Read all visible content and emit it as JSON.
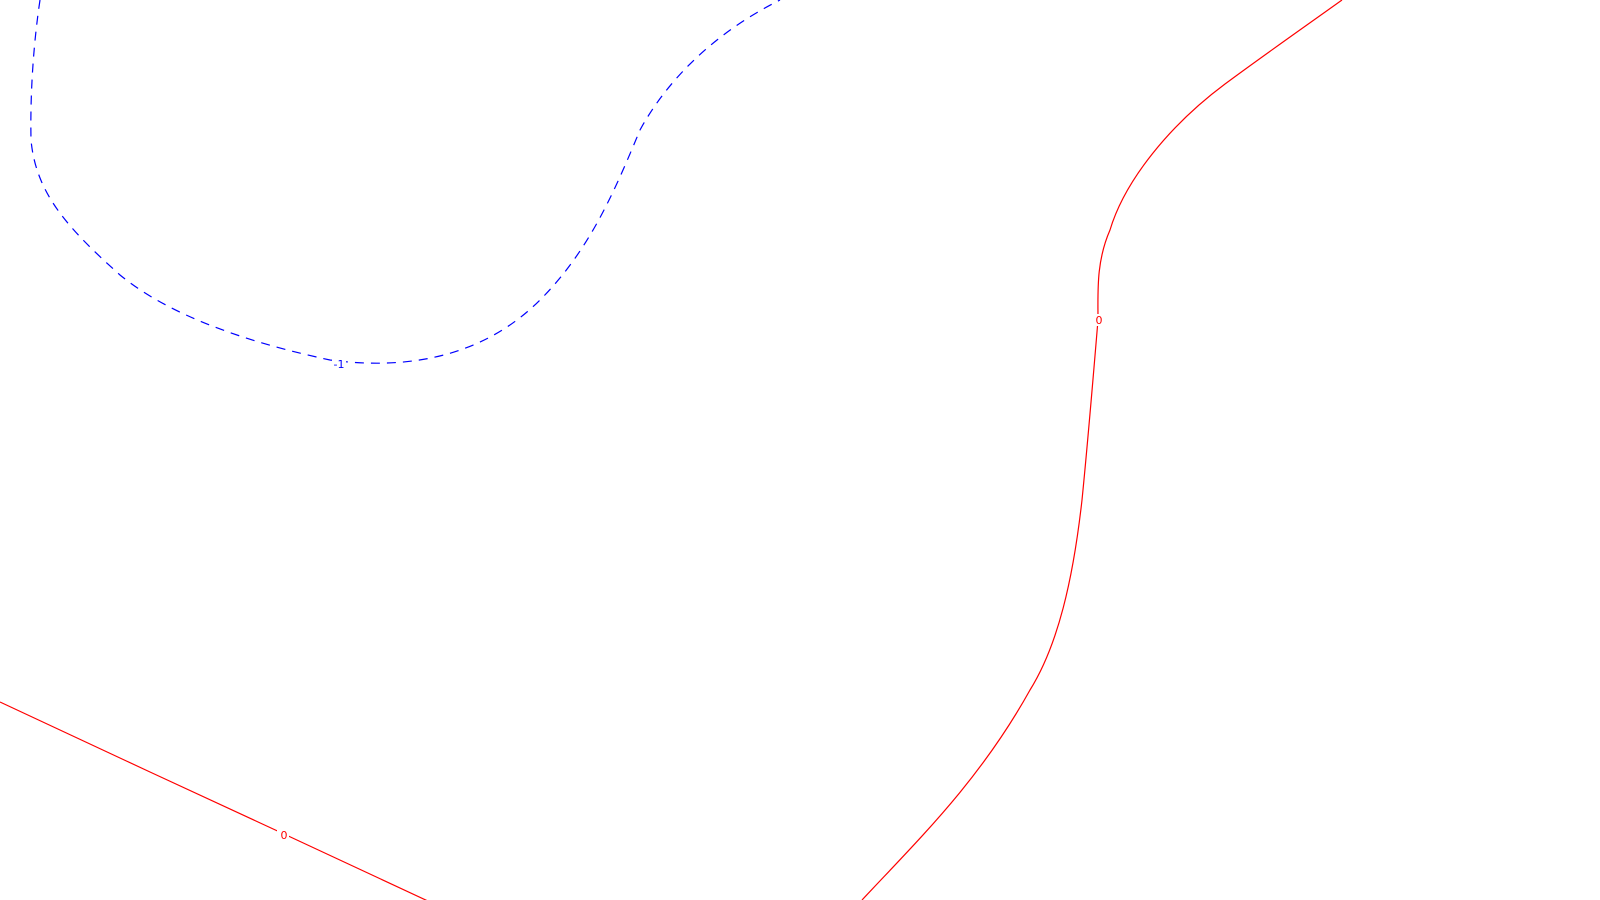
{
  "map": {
    "contours": [
      {
        "id": "contour-neg1",
        "level": -1,
        "label": "-1",
        "color": "#0000ff",
        "line_style": "dashed"
      },
      {
        "id": "contour-zero-right",
        "level": 0,
        "label": "0",
        "color": "#ff0000",
        "line_style": "solid"
      },
      {
        "id": "contour-zero-bottom-left",
        "level": 0,
        "label": "0",
        "color": "#ff0000",
        "line_style": "solid"
      }
    ]
  }
}
